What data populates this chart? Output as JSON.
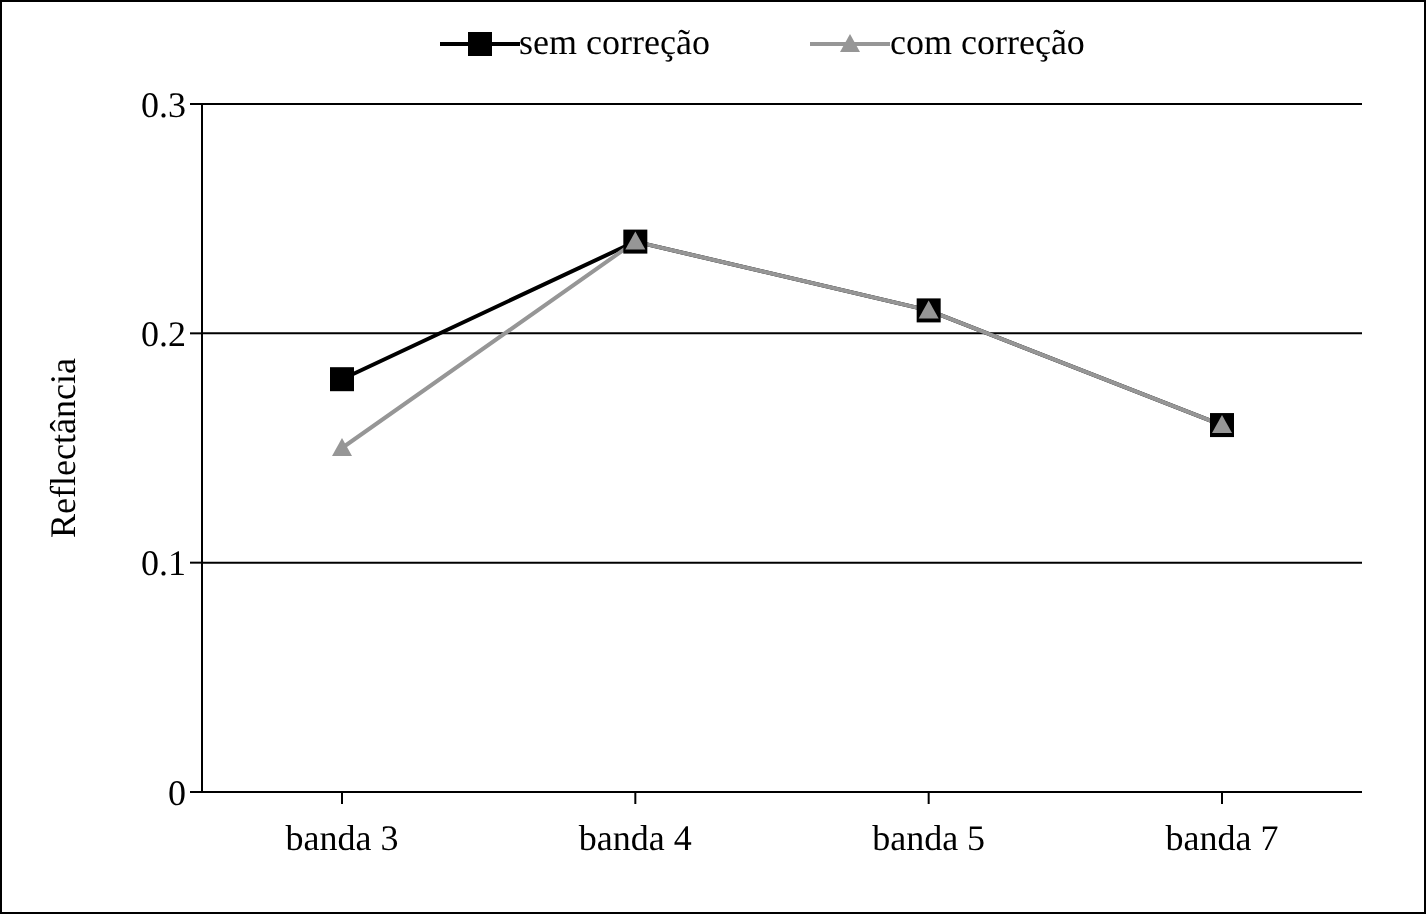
{
  "chart_data": {
    "type": "line",
    "ylabel": "Reflectância",
    "categories": [
      "banda 3",
      "banda 4",
      "banda 5",
      "banda 7"
    ],
    "series": [
      {
        "name": "sem correção",
        "color": "#000000",
        "marker": "square",
        "values": [
          0.18,
          0.24,
          0.21,
          0.16
        ]
      },
      {
        "name": "com correção",
        "color": "#969696",
        "marker": "triangle",
        "values": [
          0.15,
          0.24,
          0.21,
          0.16
        ]
      }
    ],
    "ylim": [
      0,
      0.3
    ],
    "yticks": [
      0,
      0.1,
      0.2,
      0.3
    ],
    "grid": "y",
    "legend": "top",
    "line_style": "solid"
  }
}
